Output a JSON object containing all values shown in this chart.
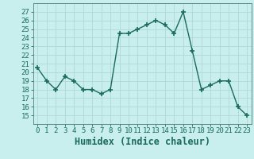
{
  "x": [
    0,
    1,
    2,
    3,
    4,
    5,
    6,
    7,
    8,
    9,
    10,
    11,
    12,
    13,
    14,
    15,
    16,
    17,
    18,
    19,
    20,
    21,
    22,
    23
  ],
  "y": [
    20.5,
    19.0,
    18.0,
    19.5,
    19.0,
    18.0,
    18.0,
    17.5,
    18.0,
    24.5,
    24.5,
    25.0,
    25.5,
    26.0,
    25.5,
    24.5,
    27.0,
    22.5,
    18.0,
    18.5,
    19.0,
    19.0,
    16.0,
    15.0
  ],
  "xlabel": "Humidex (Indice chaleur)",
  "ylim": [
    14,
    28
  ],
  "xlim": [
    -0.5,
    23.5
  ],
  "yticks": [
    15,
    16,
    17,
    18,
    19,
    20,
    21,
    22,
    23,
    24,
    25,
    26,
    27
  ],
  "xticks": [
    0,
    1,
    2,
    3,
    4,
    5,
    6,
    7,
    8,
    9,
    10,
    11,
    12,
    13,
    14,
    15,
    16,
    17,
    18,
    19,
    20,
    21,
    22,
    23
  ],
  "line_color": "#1a6b5a",
  "marker": "+",
  "marker_size": 4,
  "marker_lw": 1.2,
  "line_width": 1.0,
  "bg_color": "#c8eeed",
  "grid_color": "#b0d8d6",
  "border_color": "#5a8a80",
  "tick_label_fontsize": 6.5,
  "xlabel_fontsize": 8.5,
  "xlabel_fontweight": "bold"
}
